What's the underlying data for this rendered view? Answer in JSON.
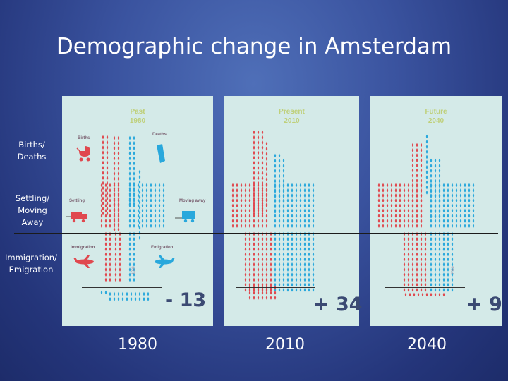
{
  "title": "Demographic change in Amsterdam",
  "row_labels": {
    "births_deaths": "Births/ Deaths",
    "settling_moving": "Settling/ Moving Away",
    "immigration_emigration": "Immigration/ Emigration"
  },
  "panels": [
    {
      "era": "Past",
      "era_year": "1980",
      "net": "- 13",
      "caption": "1980",
      "labels": {
        "births": "Births",
        "deaths": "Deaths",
        "settling": "Settling",
        "moving": "Moving away",
        "immigration": "Immigration",
        "emigration": "Emigration"
      },
      "side_note": "1980"
    },
    {
      "era": "Present",
      "era_year": "2010",
      "net": "+ 34",
      "caption": "2010"
    },
    {
      "era": "Future",
      "era_year": "2040",
      "net": "+ 9",
      "caption": "2040",
      "side_note": "2040"
    }
  ],
  "colors": {
    "inflow": "#e0484e",
    "outflow": "#29a8dc",
    "panel_bg": "#d4eae8",
    "era_label": "#bfd07a",
    "net_text": "#3b4a73"
  }
}
